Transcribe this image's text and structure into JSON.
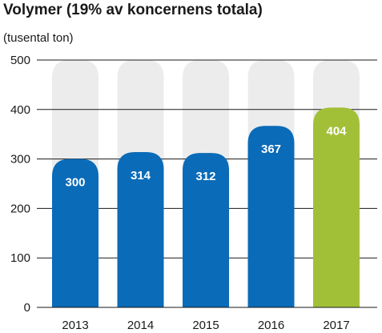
{
  "chart_data": {
    "type": "bar",
    "title": "Volymer (19% av koncernens totala)",
    "unit_label": "(tusental ton)",
    "categories": [
      "2013",
      "2014",
      "2015",
      "2016",
      "2017"
    ],
    "values": [
      300,
      314,
      312,
      367,
      404
    ],
    "max_background": 500,
    "ylim": [
      0,
      500
    ],
    "yticks": [
      0,
      100,
      200,
      300,
      400,
      500
    ],
    "grid": true,
    "colors": {
      "bar": "#0a6bb8",
      "highlight_bar": "#a2c037",
      "highlight_index": 4,
      "background_pill": "#ececec",
      "grid": "#1a1a1a"
    }
  }
}
